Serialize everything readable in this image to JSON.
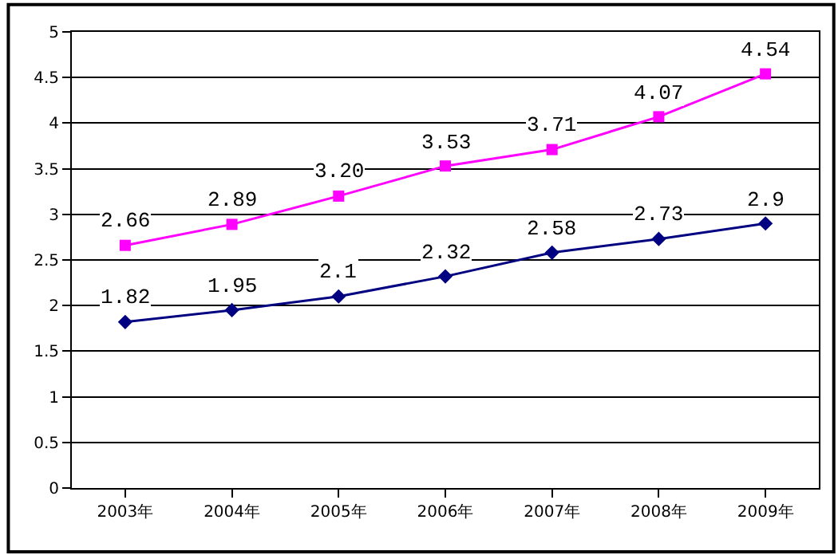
{
  "chart_data": {
    "type": "line",
    "categories": [
      "2003年",
      "2004年",
      "2005年",
      "2006年",
      "2007年",
      "2008年",
      "2009年"
    ],
    "series": [
      {
        "color": "#ff00ff",
        "marker": "square",
        "values": [
          2.66,
          2.89,
          3.2,
          3.53,
          3.71,
          4.07,
          4.54
        ],
        "value_labels": [
          "2.66",
          "2.89",
          "3.20",
          "3.53",
          "3.71",
          "4.07",
          "4.54"
        ]
      },
      {
        "color": "#000080",
        "marker": "diamond",
        "values": [
          1.82,
          1.95,
          2.1,
          2.32,
          2.58,
          2.73,
          2.9
        ],
        "value_labels": [
          "1.82",
          "1.95",
          "2.1",
          "2.32",
          "2.58",
          "2.73",
          "2.9"
        ]
      }
    ],
    "ylim": [
      0,
      5
    ],
    "yticks": [
      0,
      {
        "value": 0.5,
        "label": "0.5"
      },
      1,
      1.5,
      2,
      2.5,
      3,
      3.5,
      4,
      4.5,
      5
    ],
    "grid": "y",
    "legend": false,
    "line_style": "solid"
  }
}
